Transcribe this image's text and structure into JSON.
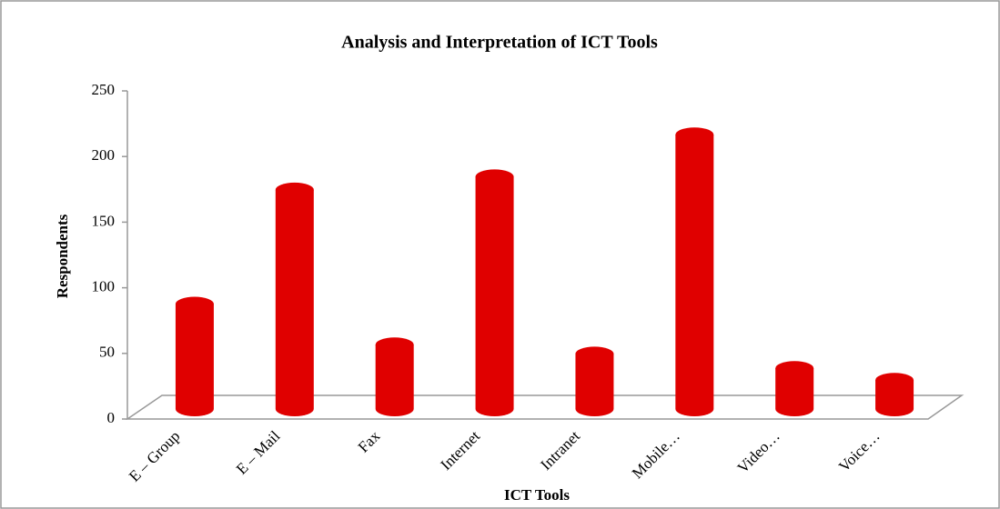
{
  "chart_data": {
    "type": "bar3d",
    "title": "Analysis and Interpretation of ICT Tools",
    "x_label": "ICT Tools",
    "y_label": "Respondents",
    "categories": [
      "E – Group",
      "E – Mail",
      "Fax",
      "Internet",
      "Intranet",
      "Mobile…",
      "Video…",
      "Voice…"
    ],
    "values": [
      80,
      167,
      49,
      177,
      42,
      209,
      31,
      22
    ],
    "color": "#e00000",
    "ylim": [
      0,
      250
    ],
    "yticks": [
      0,
      50,
      100,
      150,
      200,
      250
    ],
    "grid": false
  }
}
